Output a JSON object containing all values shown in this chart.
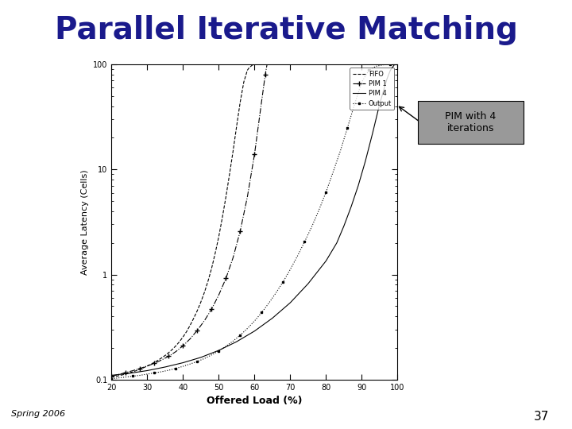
{
  "title": "Parallel Iterative Matching",
  "xlabel": "Offered Load (%)",
  "ylabel": "Average Latency (Cells)",
  "xlim": [
    20,
    100
  ],
  "ylim_log": [
    0.1,
    100
  ],
  "xticks": [
    20,
    30,
    40,
    50,
    60,
    70,
    80,
    90,
    100
  ],
  "yticks": [
    0.1,
    1.0,
    10.0,
    100.0
  ],
  "ytick_labels": [
    "0.1",
    "1",
    "10",
    "100"
  ],
  "slide_bg": "#ffffff",
  "plot_bg": "#ffffff",
  "legend_labels": [
    "FIFO",
    "PIM 1",
    "PIM 4",
    "Output"
  ],
  "annotation_text": "PIM with 4\niterations",
  "annotation_box_color": "#999999",
  "spring_2006_text": "Spring 2006",
  "slide_number": "37",
  "title_color": "#1a1a8c",
  "title_fontsize": 28,
  "curves": {
    "fifo": {
      "x": [
        20,
        21,
        22,
        23,
        24,
        25,
        26,
        27,
        28,
        29,
        30,
        31,
        32,
        33,
        34,
        35,
        36,
        37,
        38,
        39,
        40,
        41,
        42,
        43,
        44,
        45,
        46,
        47,
        48,
        49,
        50,
        51,
        52,
        53,
        54,
        55,
        56,
        57,
        58,
        58.5,
        59,
        59.3,
        59.6,
        59.8,
        60
      ],
      "y": [
        0.105,
        0.107,
        0.109,
        0.111,
        0.113,
        0.116,
        0.119,
        0.122,
        0.126,
        0.13,
        0.135,
        0.14,
        0.146,
        0.153,
        0.161,
        0.17,
        0.181,
        0.194,
        0.21,
        0.23,
        0.255,
        0.287,
        0.33,
        0.385,
        0.455,
        0.55,
        0.68,
        0.87,
        1.15,
        1.6,
        2.3,
        3.5,
        5.5,
        9.0,
        15,
        26,
        44,
        68,
        88,
        93,
        96,
        98,
        99,
        99.5,
        100
      ],
      "style": "--",
      "color": "#000000",
      "linewidth": 0.8
    },
    "pim1": {
      "x": [
        20,
        22,
        24,
        26,
        28,
        30,
        32,
        34,
        36,
        38,
        40,
        42,
        44,
        46,
        48,
        50,
        52,
        54,
        56,
        58,
        60,
        62,
        63,
        63.5
      ],
      "y": [
        0.108,
        0.112,
        0.117,
        0.122,
        0.128,
        0.135,
        0.143,
        0.154,
        0.167,
        0.185,
        0.21,
        0.245,
        0.295,
        0.365,
        0.47,
        0.64,
        0.92,
        1.45,
        2.6,
        5.5,
        14,
        45,
        80,
        100
      ],
      "style": "-.",
      "color": "#000000",
      "marker": "+",
      "markevery": 2,
      "markersize": 5,
      "linewidth": 0.8
    },
    "pim4": {
      "x": [
        20,
        25,
        30,
        35,
        40,
        45,
        50,
        55,
        60,
        65,
        70,
        75,
        80,
        83,
        85,
        87,
        89,
        91,
        93,
        95,
        97,
        98,
        99
      ],
      "y": [
        0.11,
        0.115,
        0.122,
        0.132,
        0.145,
        0.163,
        0.19,
        0.23,
        0.29,
        0.385,
        0.54,
        0.82,
        1.35,
        2.0,
        2.9,
        4.4,
        7.0,
        12,
        22,
        42,
        72,
        88,
        98
      ],
      "style": "-",
      "color": "#000000",
      "marker": null,
      "linewidth": 0.8
    },
    "output": {
      "x": [
        20,
        22,
        24,
        26,
        28,
        30,
        32,
        34,
        36,
        38,
        40,
        42,
        44,
        46,
        48,
        50,
        52,
        54,
        56,
        58,
        60,
        62,
        64,
        66,
        68,
        70,
        72,
        74,
        76,
        78,
        80,
        82,
        84,
        86,
        88,
        90,
        92,
        94,
        96,
        98,
        99,
        100
      ],
      "y": [
        0.102,
        0.104,
        0.106,
        0.108,
        0.11,
        0.113,
        0.116,
        0.119,
        0.123,
        0.128,
        0.134,
        0.141,
        0.149,
        0.159,
        0.172,
        0.188,
        0.208,
        0.233,
        0.265,
        0.307,
        0.362,
        0.435,
        0.535,
        0.67,
        0.855,
        1.12,
        1.5,
        2.05,
        2.85,
        4.1,
        6.1,
        9.5,
        15,
        25,
        42,
        68,
        88,
        96,
        99,
        99.8,
        100,
        100
      ],
      "style": ":",
      "color": "#000000",
      "marker": "s",
      "markevery": 3,
      "markersize": 2,
      "linewidth": 0.8
    }
  }
}
